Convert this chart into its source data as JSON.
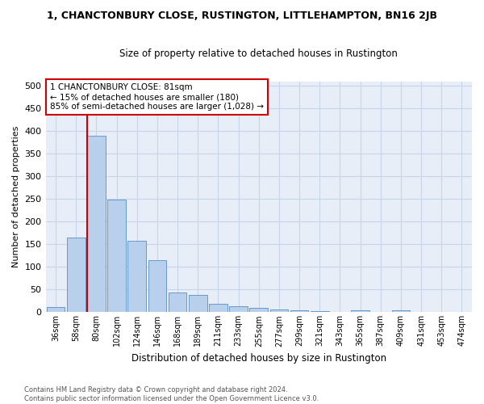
{
  "title": "1, CHANCTONBURY CLOSE, RUSTINGTON, LITTLEHAMPTON, BN16 2JB",
  "subtitle": "Size of property relative to detached houses in Rustington",
  "xlabel": "Distribution of detached houses by size in Rustington",
  "ylabel": "Number of detached properties",
  "categories": [
    "36sqm",
    "58sqm",
    "80sqm",
    "102sqm",
    "124sqm",
    "146sqm",
    "168sqm",
    "189sqm",
    "211sqm",
    "233sqm",
    "255sqm",
    "277sqm",
    "299sqm",
    "321sqm",
    "343sqm",
    "365sqm",
    "387sqm",
    "409sqm",
    "431sqm",
    "453sqm",
    "474sqm"
  ],
  "bar_values": [
    12,
    165,
    390,
    248,
    157,
    114,
    44,
    39,
    18,
    14,
    9,
    6,
    5,
    3,
    0,
    5,
    0,
    5,
    0,
    0,
    0
  ],
  "bar_color": "#b8d0eb",
  "bar_edge_color": "#6699cc",
  "grid_color": "#c8d4e8",
  "background_color": "#e8eef8",
  "property_line_color": "#cc0000",
  "annotation_text": "1 CHANCTONBURY CLOSE: 81sqm\n← 15% of detached houses are smaller (180)\n85% of semi-detached houses are larger (1,028) →",
  "annotation_box_color": "#cc0000",
  "ylim": [
    0,
    510
  ],
  "yticks": [
    0,
    50,
    100,
    150,
    200,
    250,
    300,
    350,
    400,
    450,
    500
  ],
  "footnote": "Contains HM Land Registry data © Crown copyright and database right 2024.\nContains public sector information licensed under the Open Government Licence v3.0."
}
